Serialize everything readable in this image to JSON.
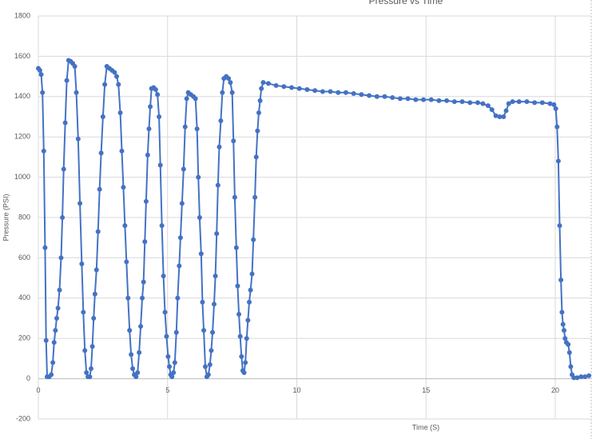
{
  "chart_data": {
    "type": "line",
    "title": "Pressure vs Time",
    "x_label": "Time (S)",
    "y_label": "Pressure (PSI)",
    "color": "#4472c4",
    "grid": true,
    "markers": true,
    "xlim": [
      0,
      21.4
    ],
    "xticks": [
      0,
      5,
      10,
      15,
      20
    ],
    "ylim": [
      -200,
      1800
    ],
    "yticks": [
      -200,
      0,
      200,
      400,
      600,
      800,
      1000,
      1200,
      1400,
      1600,
      1800
    ],
    "x": [
      0,
      0.06,
      0.11,
      0.16,
      0.21,
      0.26,
      0.3,
      0.34,
      0.42,
      0.5,
      0.56,
      0.61,
      0.66,
      0.71,
      0.76,
      0.82,
      0.88,
      0.93,
      0.98,
      1.04,
      1.1,
      1.17,
      1.25,
      1.33,
      1.41,
      1.47,
      1.54,
      1.61,
      1.68,
      1.74,
      1.8,
      1.86,
      1.92,
      1.99,
      2.04,
      2.09,
      2.14,
      2.19,
      2.25,
      2.31,
      2.37,
      2.43,
      2.5,
      2.57,
      2.65,
      2.75,
      2.85,
      2.95,
      3.03,
      3.1,
      3.17,
      3.23,
      3.29,
      3.35,
      3.41,
      3.47,
      3.53,
      3.59,
      3.65,
      3.71,
      3.78,
      3.84,
      3.9,
      3.96,
      4.02,
      4.07,
      4.12,
      4.17,
      4.23,
      4.28,
      4.33,
      4.38,
      4.46,
      4.54,
      4.61,
      4.67,
      4.72,
      4.78,
      4.84,
      4.9,
      4.96,
      5.02,
      5.07,
      5.12,
      5.17,
      5.23,
      5.28,
      5.34,
      5.39,
      5.45,
      5.5,
      5.56,
      5.62,
      5.68,
      5.74,
      5.8,
      5.9,
      6.0,
      6.08,
      6.14,
      6.19,
      6.24,
      6.3,
      6.35,
      6.4,
      6.46,
      6.52,
      6.58,
      6.64,
      6.69,
      6.74,
      6.8,
      6.85,
      6.9,
      6.95,
      7.0,
      7.06,
      7.12,
      7.18,
      7.27,
      7.36,
      7.43,
      7.5,
      7.55,
      7.6,
      7.66,
      7.71,
      7.76,
      7.81,
      7.86,
      7.91,
      7.96,
      8.01,
      8.06,
      8.11,
      8.16,
      8.21,
      8.27,
      8.32,
      8.38,
      8.43,
      8.48,
      8.53,
      8.58,
      8.63,
      8.7,
      8.9,
      9.2,
      9.5,
      9.8,
      10.1,
      10.4,
      10.7,
      11.0,
      11.3,
      11.6,
      11.9,
      12.2,
      12.5,
      12.8,
      13.1,
      13.4,
      13.7,
      14.0,
      14.3,
      14.6,
      14.9,
      15.2,
      15.5,
      15.8,
      16.1,
      16.4,
      16.7,
      17.0,
      17.2,
      17.4,
      17.55,
      17.7,
      17.85,
      18.0,
      18.1,
      18.2,
      18.35,
      18.6,
      18.9,
      19.2,
      19.5,
      19.8,
      19.95,
      20.02,
      20.07,
      20.12,
      20.17,
      20.22,
      20.26,
      20.3,
      20.34,
      20.38,
      20.43,
      20.5,
      20.55,
      20.6,
      20.65,
      20.72,
      20.85,
      21.0,
      21.15,
      21.3
    ],
    "values": [
      1540,
      1530,
      1510,
      1420,
      1130,
      650,
      190,
      10,
      10,
      20,
      80,
      180,
      240,
      300,
      350,
      440,
      600,
      800,
      1040,
      1270,
      1480,
      1580,
      1575,
      1565,
      1550,
      1420,
      1190,
      870,
      570,
      330,
      140,
      30,
      10,
      10,
      50,
      160,
      300,
      420,
      540,
      730,
      940,
      1120,
      1300,
      1460,
      1550,
      1540,
      1530,
      1520,
      1500,
      1460,
      1320,
      1130,
      950,
      760,
      580,
      400,
      240,
      120,
      50,
      20,
      10,
      30,
      130,
      260,
      400,
      480,
      680,
      880,
      1110,
      1240,
      1350,
      1440,
      1445,
      1435,
      1410,
      1300,
      1060,
      760,
      510,
      330,
      210,
      110,
      60,
      20,
      10,
      30,
      80,
      230,
      400,
      560,
      700,
      870,
      1040,
      1250,
      1390,
      1420,
      1410,
      1400,
      1390,
      1240,
      1000,
      800,
      620,
      380,
      240,
      60,
      10,
      20,
      70,
      140,
      230,
      370,
      510,
      720,
      960,
      1150,
      1280,
      1420,
      1490,
      1500,
      1490,
      1470,
      1420,
      1180,
      900,
      650,
      460,
      320,
      210,
      110,
      40,
      30,
      80,
      200,
      290,
      380,
      440,
      520,
      690,
      900,
      1100,
      1230,
      1320,
      1380,
      1440,
      1470,
      1465,
      1455,
      1450,
      1445,
      1440,
      1435,
      1430,
      1425,
      1425,
      1420,
      1420,
      1415,
      1410,
      1405,
      1400,
      1400,
      1395,
      1390,
      1390,
      1385,
      1385,
      1385,
      1380,
      1380,
      1375,
      1375,
      1370,
      1370,
      1365,
      1355,
      1335,
      1305,
      1300,
      1300,
      1330,
      1365,
      1375,
      1375,
      1375,
      1370,
      1370,
      1365,
      1360,
      1340,
      1250,
      1080,
      760,
      490,
      330,
      270,
      240,
      200,
      180,
      170,
      130,
      60,
      20,
      5,
      5,
      10,
      10,
      15
    ]
  }
}
